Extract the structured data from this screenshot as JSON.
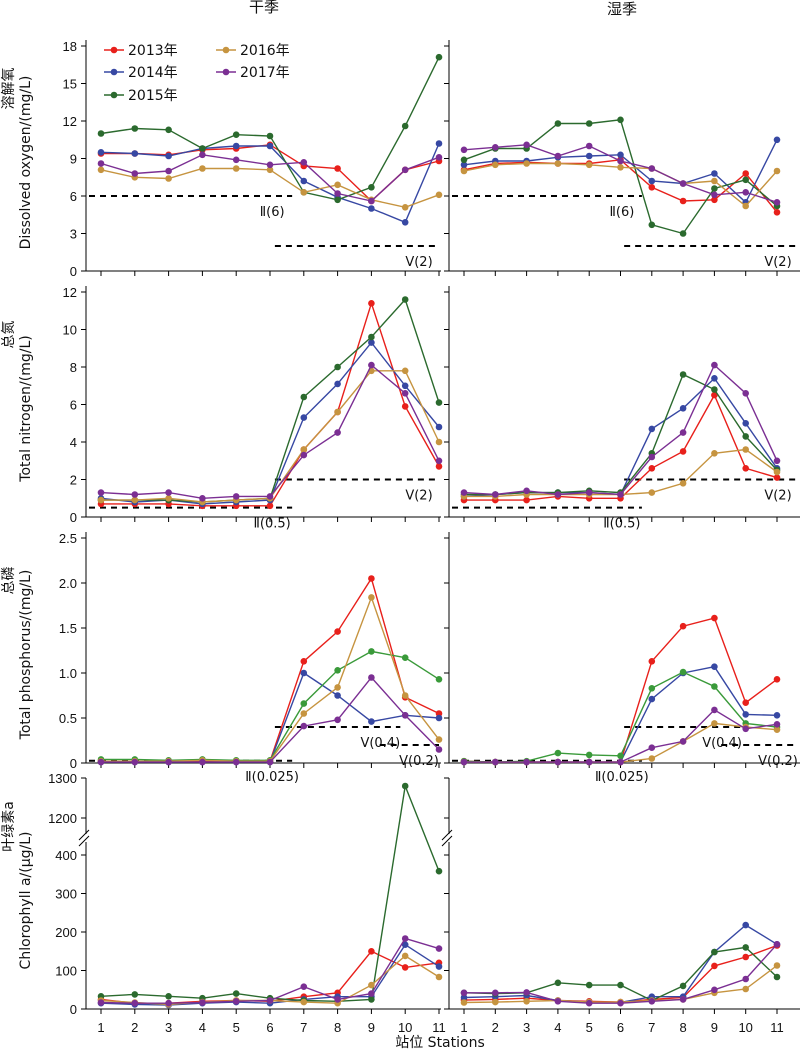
{
  "header": {
    "dry_season": "干季",
    "wet_season": "湿季"
  },
  "x_axis_title": "站位 Stations",
  "colors": {
    "2013": "#e8201b",
    "2014": "#3748a3",
    "2015": "#2b6a2e",
    "2016": "#c69440",
    "2017": "#7b2f93",
    "2015_tp": "#3a9a3a"
  },
  "chart_data": [
    {
      "id": "do",
      "type": "line",
      "ylabel_cn": "溶解氧",
      "ylabel_en": "Dissolved oxygen/(mg/L)",
      "yticks": [
        "0",
        "3",
        "6",
        "9",
        "12",
        "15",
        "18"
      ],
      "ylim": [
        0,
        18
      ],
      "x": [
        1,
        2,
        3,
        4,
        5,
        6,
        7,
        8,
        9,
        10,
        11
      ],
      "legend": [
        "2013年",
        "2014年",
        "2015年",
        "2016年",
        "2017年"
      ],
      "thresholds": [
        {
          "label": "Ⅱ(6)",
          "value": 6,
          "from": 1,
          "to": 6.3
        },
        {
          "label": "Ⅴ(2)",
          "value": 2,
          "from": 6.5,
          "to": 11.3
        }
      ],
      "dry": [
        {
          "name": "2013",
          "values": [
            9.4,
            9.4,
            9.3,
            9.7,
            9.8,
            10.1,
            8.4,
            8.2,
            5.6,
            8.1,
            8.8
          ]
        },
        {
          "name": "2014",
          "values": [
            9.5,
            9.4,
            9.2,
            9.8,
            10.0,
            10.0,
            7.2,
            5.9,
            5.0,
            3.9,
            10.2
          ]
        },
        {
          "name": "2015",
          "values": [
            11.0,
            11.4,
            11.3,
            9.8,
            10.9,
            10.8,
            6.3,
            5.7,
            6.7,
            11.6,
            17.1
          ]
        },
        {
          "name": "2016",
          "values": [
            8.1,
            7.5,
            7.4,
            8.2,
            8.2,
            8.1,
            6.3,
            6.9,
            5.7,
            5.1,
            6.1
          ]
        },
        {
          "name": "2017",
          "values": [
            8.6,
            7.8,
            8.0,
            9.3,
            8.9,
            8.5,
            8.7,
            6.2,
            5.6,
            8.1,
            9.1
          ]
        }
      ],
      "wet": [
        {
          "name": "2013",
          "values": [
            8.1,
            8.6,
            8.7,
            8.6,
            8.6,
            8.9,
            6.7,
            5.6,
            5.7,
            7.8,
            4.7
          ]
        },
        {
          "name": "2014",
          "values": [
            8.5,
            8.8,
            8.8,
            9.1,
            9.2,
            9.3,
            7.2,
            7.0,
            7.8,
            5.5,
            10.5
          ]
        },
        {
          "name": "2015",
          "values": [
            8.9,
            9.8,
            9.8,
            11.8,
            11.8,
            12.1,
            3.7,
            3.0,
            6.6,
            7.3,
            5.2
          ]
        },
        {
          "name": "2016",
          "values": [
            8.0,
            8.5,
            8.6,
            8.6,
            8.5,
            8.3,
            8.2,
            7.0,
            7.2,
            5.2,
            8.0
          ]
        },
        {
          "name": "2017",
          "values": [
            9.7,
            9.9,
            10.1,
            9.2,
            10.0,
            8.8,
            8.2,
            7.0,
            6.1,
            6.3,
            5.5
          ]
        }
      ]
    },
    {
      "id": "tn",
      "type": "line",
      "ylabel_cn": "总氮",
      "ylabel_en": "Total nitrogen/(mg/L)",
      "yticks": [
        "0",
        "2",
        "4",
        "6",
        "8",
        "10",
        "12"
      ],
      "ylim": [
        0,
        12
      ],
      "x": [
        1,
        2,
        3,
        4,
        5,
        6,
        7,
        8,
        9,
        10,
        11
      ],
      "thresholds": [
        {
          "label": "Ⅱ(0.5)",
          "value": 0.5,
          "from": 1,
          "to": 6.3
        },
        {
          "label": "Ⅴ(2)",
          "value": 2,
          "from": 6.5,
          "to": 11.3
        }
      ],
      "dry": [
        {
          "name": "2013",
          "values": [
            0.7,
            0.7,
            0.7,
            0.6,
            0.6,
            0.6,
            3.6,
            5.6,
            11.4,
            5.9,
            2.7
          ]
        },
        {
          "name": "2014",
          "values": [
            1.0,
            0.8,
            0.9,
            0.7,
            0.8,
            0.9,
            5.3,
            7.1,
            9.3,
            7.0,
            4.8
          ]
        },
        {
          "name": "2015",
          "values": [
            0.9,
            0.9,
            0.9,
            0.8,
            0.9,
            1.0,
            6.4,
            8.0,
            9.6,
            11.6,
            6.1
          ]
        },
        {
          "name": "2016",
          "values": [
            0.9,
            0.9,
            1.0,
            0.8,
            0.9,
            1.0,
            3.6,
            5.6,
            7.8,
            7.8,
            4.0
          ]
        },
        {
          "name": "2017",
          "values": [
            1.3,
            1.2,
            1.3,
            1.0,
            1.1,
            1.1,
            3.3,
            4.5,
            8.1,
            6.6,
            3.0
          ]
        }
      ],
      "wet": [
        {
          "name": "2013",
          "values": [
            0.9,
            0.9,
            0.9,
            1.1,
            1.0,
            1.0,
            2.6,
            3.5,
            6.5,
            2.6,
            2.1
          ]
        },
        {
          "name": "2014",
          "values": [
            1.1,
            1.2,
            1.3,
            1.3,
            1.3,
            1.2,
            4.7,
            5.8,
            7.4,
            5.0,
            2.6
          ]
        },
        {
          "name": "2015",
          "values": [
            1.2,
            1.2,
            1.3,
            1.3,
            1.4,
            1.3,
            3.4,
            7.6,
            6.8,
            4.3,
            2.5
          ]
        },
        {
          "name": "2016",
          "values": [
            1.1,
            1.1,
            1.2,
            1.2,
            1.2,
            1.2,
            1.3,
            1.8,
            3.4,
            3.6,
            2.4
          ]
        },
        {
          "name": "2017",
          "values": [
            1.3,
            1.2,
            1.4,
            1.2,
            1.3,
            1.2,
            3.2,
            4.5,
            8.1,
            6.6,
            3.0
          ]
        }
      ]
    },
    {
      "id": "tp",
      "type": "line",
      "ylabel_cn": "总磷",
      "ylabel_en": "Total phosphorus/(mg/L)",
      "yticks": [
        "0",
        "0.5",
        "1.0",
        "1.5",
        "2.0",
        "2.5"
      ],
      "ylim": [
        0,
        2.5
      ],
      "x": [
        1,
        2,
        3,
        4,
        5,
        6,
        7,
        8,
        9,
        10,
        11
      ],
      "thresholds": [
        {
          "label": "Ⅱ(0.025)",
          "value": 0.025,
          "from": 1,
          "to": 6.3
        },
        {
          "label": "Ⅴ(0.4)",
          "value": 0.4,
          "from": 6.5,
          "to": 9.5
        },
        {
          "label": "Ⅴ(0.2)",
          "value": 0.2,
          "from": 9.6,
          "to": 11.3
        }
      ],
      "dry": [
        {
          "name": "2013",
          "values": [
            0.02,
            0.02,
            0.02,
            0.02,
            0.02,
            0.02,
            1.13,
            1.46,
            2.05,
            0.73,
            0.55
          ]
        },
        {
          "name": "2014",
          "values": [
            0.01,
            0.01,
            0.01,
            0.01,
            0.01,
            0.01,
            1.0,
            0.75,
            0.46,
            0.53,
            0.5
          ]
        },
        {
          "name": "2015",
          "values": [
            0.04,
            0.04,
            0.03,
            0.04,
            0.03,
            0.03,
            0.66,
            1.03,
            1.24,
            1.17,
            0.93
          ]
        },
        {
          "name": "2016",
          "values": [
            0.02,
            0.02,
            0.02,
            0.03,
            0.02,
            0.02,
            0.55,
            0.84,
            1.84,
            0.75,
            0.26
          ]
        },
        {
          "name": "2017",
          "values": [
            0.01,
            0.01,
            0.01,
            0.01,
            0.01,
            0.01,
            0.41,
            0.48,
            0.95,
            0.53,
            0.15
          ]
        }
      ],
      "wet": [
        {
          "name": "2013",
          "values": [
            0.02,
            0.01,
            0.01,
            0.01,
            0.01,
            0.01,
            1.13,
            1.52,
            1.61,
            0.67,
            0.93
          ]
        },
        {
          "name": "2014",
          "values": [
            0.01,
            0.01,
            0.01,
            0.01,
            0.01,
            0.01,
            0.71,
            1.0,
            1.07,
            0.54,
            0.53
          ]
        },
        {
          "name": "2015",
          "values": [
            0.02,
            0.01,
            0.02,
            0.11,
            0.09,
            0.08,
            0.83,
            1.01,
            0.85,
            0.44,
            0.4
          ]
        },
        {
          "name": "2016",
          "values": [
            0.01,
            0.01,
            0.01,
            0.01,
            0.01,
            0.01,
            0.05,
            0.24,
            0.44,
            0.4,
            0.37
          ]
        },
        {
          "name": "2017",
          "values": [
            0.01,
            0.01,
            0.01,
            0.01,
            0.01,
            0.01,
            0.17,
            0.24,
            0.59,
            0.38,
            0.43
          ]
        }
      ]
    },
    {
      "id": "chla",
      "type": "line",
      "ylabel_cn": "叶绿素a",
      "ylabel_en": "Chlorophyll a/(μg/L)",
      "yticks": [
        "0",
        "100",
        "200",
        "300",
        "400",
        "1200",
        "1300"
      ],
      "ylim": [
        0,
        1300
      ],
      "axis_break": [
        450,
        1150
      ],
      "x": [
        1,
        2,
        3,
        4,
        5,
        6,
        7,
        8,
        9,
        10,
        11
      ],
      "dry": [
        {
          "name": "2013",
          "values": [
            25,
            15,
            15,
            20,
            22,
            20,
            32,
            42,
            150,
            108,
            120
          ]
        },
        {
          "name": "2014",
          "values": [
            15,
            12,
            10,
            15,
            18,
            15,
            25,
            32,
            32,
            167,
            110
          ]
        },
        {
          "name": "2015",
          "values": [
            33,
            38,
            33,
            28,
            40,
            28,
            22,
            20,
            25,
            1280,
            358
          ]
        },
        {
          "name": "2016",
          "values": [
            22,
            17,
            12,
            18,
            22,
            22,
            18,
            15,
            62,
            138,
            83
          ]
        },
        {
          "name": "2017",
          "values": [
            17,
            15,
            15,
            17,
            20,
            22,
            58,
            25,
            40,
            183,
            157
          ]
        }
      ],
      "wet": [
        {
          "name": "2013",
          "values": [
            23,
            25,
            28,
            22,
            20,
            18,
            25,
            30,
            112,
            135,
            165
          ]
        },
        {
          "name": "2014",
          "values": [
            30,
            32,
            35,
            22,
            18,
            17,
            32,
            32,
            148,
            218,
            168
          ]
        },
        {
          "name": "2015",
          "values": [
            42,
            40,
            42,
            68,
            62,
            62,
            22,
            60,
            148,
            160,
            83
          ]
        },
        {
          "name": "2016",
          "values": [
            17,
            18,
            20,
            22,
            18,
            18,
            22,
            25,
            42,
            52,
            113
          ]
        },
        {
          "name": "2017",
          "values": [
            42,
            42,
            43,
            20,
            15,
            15,
            20,
            25,
            50,
            78,
            168
          ]
        }
      ]
    }
  ]
}
